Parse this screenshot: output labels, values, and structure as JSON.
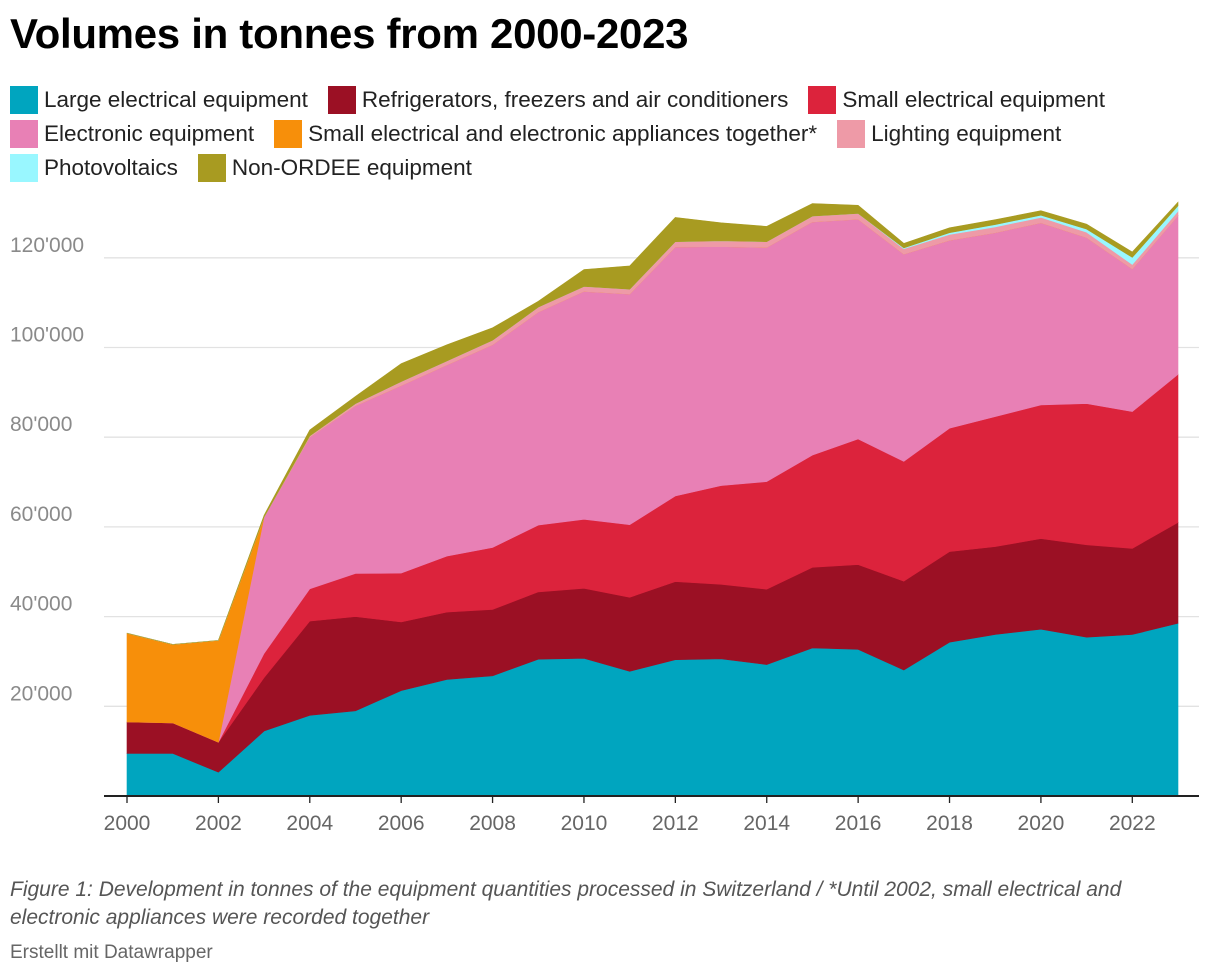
{
  "title": "Volumes in tonnes from 2000-2023",
  "caption": "Figure 1: Development in tonnes of the equipment quantities processed in Switzerland / *Until 2002, small electrical and electronic appliances were recorded together",
  "credit": "Erstellt mit Datawrapper",
  "legend_rows": [
    [
      {
        "label": "Large electrical equipment",
        "color": "#00a5bf"
      },
      {
        "label": "Refrigerators, freezers and air conditioners",
        "color": "#9b1024"
      },
      {
        "label": "Small electrical equipment",
        "color": "#dc233c"
      }
    ],
    [
      {
        "label": "Electronic equipment",
        "color": "#e880b5"
      },
      {
        "label": "Small electrical and electronic appliances together*",
        "color": "#f78f0a"
      },
      {
        "label": "Lighting equipment",
        "color": "#ee9aa7"
      }
    ],
    [
      {
        "label": "Photovoltaics",
        "color": "#99f7ff"
      },
      {
        "label": "Non-ORDEE equipment",
        "color": "#a89b21"
      }
    ]
  ],
  "chart_data": {
    "type": "area",
    "stacked": true,
    "x": [
      2000,
      2001,
      2002,
      2003,
      2004,
      2005,
      2006,
      2007,
      2008,
      2009,
      2010,
      2011,
      2012,
      2013,
      2014,
      2015,
      2016,
      2017,
      2018,
      2019,
      2020,
      2021,
      2022,
      2023
    ],
    "xticks": [
      "2000",
      "2002",
      "2004",
      "2006",
      "2008",
      "2010",
      "2012",
      "2014",
      "2016",
      "2018",
      "2020",
      "2022"
    ],
    "yticks": [
      "20'000",
      "40'000",
      "60'000",
      "80'000",
      "100'000",
      "120'000"
    ],
    "ylim": [
      0,
      132000
    ],
    "grid": true,
    "legend_position": "top",
    "series": [
      {
        "name": "Large electrical equipment",
        "color": "#00a5bf",
        "values": [
          9500,
          9500,
          5300,
          14500,
          18000,
          19000,
          23500,
          26000,
          26800,
          30500,
          30700,
          27800,
          30400,
          30600,
          29300,
          33000,
          32700,
          28100,
          34300,
          36000,
          37200,
          35400,
          36000,
          38500
        ]
      },
      {
        "name": "Refrigerators, freezers and air conditioners",
        "color": "#9b1024",
        "values": [
          7000,
          6800,
          6700,
          11900,
          21000,
          21000,
          15300,
          15000,
          14800,
          15000,
          15600,
          16500,
          17400,
          16600,
          16800,
          18000,
          18900,
          19800,
          20200,
          19600,
          20200,
          20600,
          19200,
          22500
        ]
      },
      {
        "name": "Small electrical equipment",
        "color": "#dc233c",
        "values": [
          0,
          0,
          0,
          5400,
          7200,
          9600,
          10900,
          12500,
          13800,
          14900,
          15400,
          16200,
          19100,
          22000,
          24000,
          25000,
          28000,
          26700,
          27500,
          29000,
          29800,
          31500,
          30500,
          33000
        ]
      },
      {
        "name": "Electronic equipment",
        "color": "#e880b5",
        "values": [
          0,
          0,
          0,
          30400,
          33800,
          37400,
          41800,
          42600,
          45200,
          47500,
          50800,
          51400,
          55500,
          53300,
          52200,
          52000,
          49000,
          46200,
          41900,
          41000,
          40600,
          37000,
          31800,
          35400
        ]
      },
      {
        "name": "Small electrical and electronic appliances together*",
        "color": "#f78f0a",
        "values": [
          19800,
          17500,
          22700,
          0,
          0,
          0,
          0,
          0,
          0,
          0,
          0,
          0,
          0,
          0,
          0,
          0,
          0,
          0,
          0,
          0,
          0,
          0,
          0,
          0
        ]
      },
      {
        "name": "Lighting equipment",
        "color": "#ee9aa7",
        "values": [
          0,
          0,
          0,
          0,
          300,
          500,
          900,
          900,
          1000,
          1100,
          1100,
          1100,
          1200,
          1300,
          1300,
          1300,
          1300,
          1200,
          1300,
          1300,
          1200,
          1200,
          1000,
          1000
        ]
      },
      {
        "name": "Photovoltaics",
        "color": "#99f7ff",
        "values": [
          0,
          0,
          0,
          0,
          0,
          0,
          0,
          0,
          0,
          0,
          0,
          0,
          0,
          0,
          0,
          0,
          0,
          200,
          400,
          500,
          500,
          700,
          1600,
          1200
        ]
      },
      {
        "name": "Non-ORDEE equipment",
        "color": "#a89b21",
        "values": [
          0,
          0,
          0,
          400,
          1300,
          1600,
          4000,
          3600,
          2800,
          1300,
          3800,
          5200,
          5400,
          4000,
          3400,
          2800,
          1800,
          1000,
          1100,
          1100,
          1000,
          1100,
          1200,
          800
        ]
      }
    ]
  }
}
